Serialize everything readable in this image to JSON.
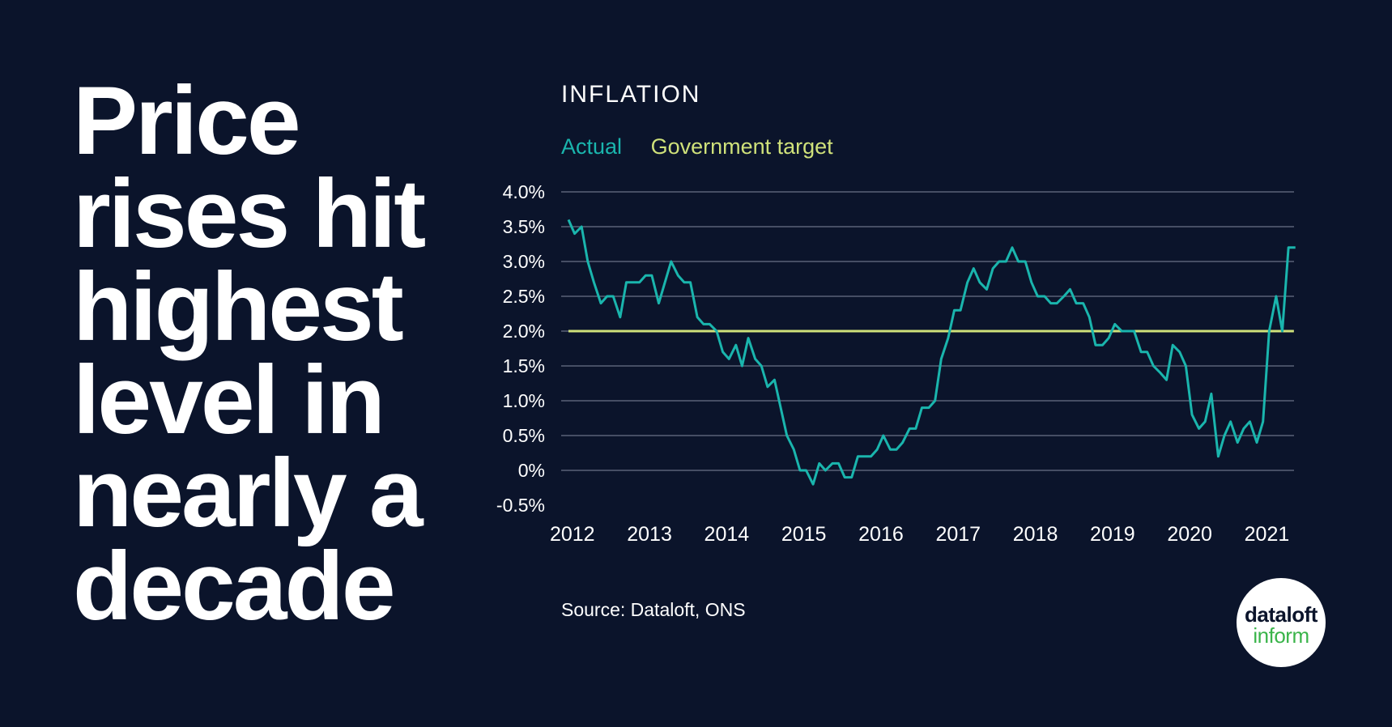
{
  "headline": [
    "Price",
    "rises hit",
    "highest",
    "level in",
    "nearly a",
    "decade"
  ],
  "source": "Source: Dataloft, ONS",
  "logo": {
    "line1": "dataloft",
    "line2": "inform"
  },
  "colors": {
    "background": "#0b142b",
    "actual": "#1ab5ad",
    "target": "#cfe17a",
    "grid": "#5a6278",
    "text": "#ffffff"
  },
  "chart_data": {
    "type": "line",
    "title": "INFLATION",
    "y_tick_labels": [
      "4.0%",
      "3.5%",
      "3.0%",
      "2.5%",
      "2.0%",
      "1.5%",
      "1.0%",
      "0.5%",
      "0%",
      "-0.5%"
    ],
    "x_tick_labels": [
      "2012",
      "2013",
      "2014",
      "2015",
      "2016",
      "2017",
      "2018",
      "2019",
      "2020",
      "2021"
    ],
    "ylim": [
      -0.5,
      4.0
    ],
    "grid": "horizontal",
    "legend_position": "top-left",
    "series": [
      {
        "name": "Actual",
        "x": [
          2012.0,
          2012.08,
          2012.17,
          2012.25,
          2012.33,
          2012.42,
          2012.5,
          2012.58,
          2012.67,
          2012.75,
          2012.83,
          2012.92,
          2013.0,
          2013.08,
          2013.17,
          2013.25,
          2013.33,
          2013.42,
          2013.5,
          2013.58,
          2013.67,
          2013.75,
          2013.83,
          2013.92,
          2014.0,
          2014.08,
          2014.17,
          2014.25,
          2014.33,
          2014.42,
          2014.5,
          2014.58,
          2014.67,
          2014.75,
          2014.83,
          2014.92,
          2015.0,
          2015.08,
          2015.17,
          2015.25,
          2015.33,
          2015.42,
          2015.5,
          2015.58,
          2015.67,
          2015.75,
          2015.83,
          2015.92,
          2016.0,
          2016.08,
          2016.17,
          2016.25,
          2016.33,
          2016.42,
          2016.5,
          2016.58,
          2016.67,
          2016.75,
          2016.83,
          2016.92,
          2017.0,
          2017.08,
          2017.17,
          2017.25,
          2017.33,
          2017.42,
          2017.5,
          2017.58,
          2017.67,
          2017.75,
          2017.83,
          2017.92,
          2018.0,
          2018.08,
          2018.17,
          2018.25,
          2018.33,
          2018.42,
          2018.5,
          2018.58,
          2018.67,
          2018.75,
          2018.83,
          2018.92,
          2019.0,
          2019.08,
          2019.17,
          2019.25,
          2019.33,
          2019.42,
          2019.5,
          2019.58,
          2019.67,
          2019.75,
          2019.83,
          2019.92,
          2020.0,
          2020.08,
          2020.17,
          2020.25,
          2020.33,
          2020.42,
          2020.5,
          2020.58,
          2020.67,
          2020.75,
          2020.83,
          2020.92,
          2021.0,
          2021.08,
          2021.17,
          2021.25,
          2021.33,
          2021.42
        ],
        "values": [
          3.6,
          3.4,
          3.5,
          3.0,
          2.7,
          2.4,
          2.5,
          2.5,
          2.2,
          2.7,
          2.7,
          2.7,
          2.8,
          2.8,
          2.4,
          2.7,
          3.0,
          2.8,
          2.7,
          2.7,
          2.2,
          2.1,
          2.1,
          2.0,
          1.7,
          1.6,
          1.8,
          1.5,
          1.9,
          1.6,
          1.5,
          1.2,
          1.3,
          0.9,
          0.5,
          0.3,
          0.0,
          0.0,
          -0.2,
          0.1,
          0.0,
          0.1,
          0.1,
          -0.1,
          -0.1,
          0.2,
          0.2,
          0.2,
          0.3,
          0.5,
          0.3,
          0.3,
          0.4,
          0.6,
          0.6,
          0.9,
          0.9,
          1.0,
          1.6,
          1.9,
          2.3,
          2.3,
          2.7,
          2.9,
          2.7,
          2.6,
          2.9,
          3.0,
          3.0,
          3.2,
          3.0,
          3.0,
          2.7,
          2.5,
          2.5,
          2.4,
          2.4,
          2.5,
          2.6,
          2.4,
          2.4,
          2.2,
          1.8,
          1.8,
          1.9,
          2.1,
          2.0,
          2.0,
          2.0,
          1.7,
          1.7,
          1.5,
          1.4,
          1.3,
          1.8,
          1.7,
          1.5,
          0.8,
          0.6,
          0.7,
          1.1,
          0.2,
          0.5,
          0.7,
          0.4,
          0.6,
          0.7,
          0.4,
          0.7,
          2.0,
          2.5,
          2.0,
          3.2,
          3.2
        ]
      },
      {
        "name": "Government target",
        "x": [
          2012.0,
          2021.4
        ],
        "values": [
          2.0,
          2.0
        ]
      }
    ]
  }
}
